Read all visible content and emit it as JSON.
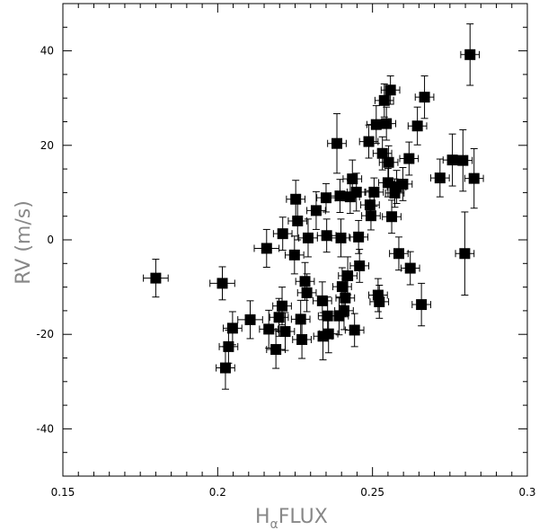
{
  "chart_data": {
    "type": "scatter",
    "title": "",
    "xlabel": {
      "main": "H",
      "subscript": "α",
      "suffix": "FLUX"
    },
    "ylabel": "RV  (m/s)",
    "xlim": [
      0.15,
      0.3
    ],
    "ylim": [
      -50,
      50
    ],
    "x_major_ticks": [
      0.15,
      0.2,
      0.25,
      0.3
    ],
    "x_tick_labels": [
      "0.15",
      "0.2",
      "0.25",
      "0.3"
    ],
    "y_major_ticks": [
      -40,
      -20,
      0,
      20,
      40
    ],
    "y_tick_labels": [
      "-40",
      "-20",
      "0",
      "20",
      "40"
    ],
    "grid": false,
    "points": [
      {
        "x": 0.18,
        "y": -8.1,
        "xerr": 0.004,
        "yerr": 4.0
      },
      {
        "x": 0.2015,
        "y": -9.2,
        "xerr": 0.004,
        "yerr": 3.5
      },
      {
        "x": 0.2025,
        "y": -27.1,
        "xerr": 0.003,
        "yerr": 4.5
      },
      {
        "x": 0.2035,
        "y": -22.6,
        "xerr": 0.003,
        "yerr": 3.5
      },
      {
        "x": 0.2048,
        "y": -18.7,
        "xerr": 0.003,
        "yerr": 3.5
      },
      {
        "x": 0.2105,
        "y": -16.9,
        "xerr": 0.004,
        "yerr": 4.0
      },
      {
        "x": 0.2158,
        "y": -1.8,
        "xerr": 0.004,
        "yerr": 4.0
      },
      {
        "x": 0.2165,
        "y": -18.9,
        "xerr": 0.003,
        "yerr": 4.0
      },
      {
        "x": 0.2188,
        "y": -23.2,
        "xerr": 0.003,
        "yerr": 4.0
      },
      {
        "x": 0.2198,
        "y": -16.4,
        "xerr": 0.003,
        "yerr": 4.0
      },
      {
        "x": 0.2208,
        "y": -14.0,
        "xerr": 0.003,
        "yerr": 4.0
      },
      {
        "x": 0.221,
        "y": 1.3,
        "xerr": 0.003,
        "yerr": 3.5
      },
      {
        "x": 0.2218,
        "y": -19.4,
        "xerr": 0.003,
        "yerr": 4.0
      },
      {
        "x": 0.2248,
        "y": -3.2,
        "xerr": 0.003,
        "yerr": 4.0
      },
      {
        "x": 0.2252,
        "y": 8.6,
        "xerr": 0.003,
        "yerr": 4.0
      },
      {
        "x": 0.2258,
        "y": 4.0,
        "xerr": 0.003,
        "yerr": 4.0
      },
      {
        "x": 0.2268,
        "y": -16.8,
        "xerr": 0.003,
        "yerr": 4.0
      },
      {
        "x": 0.2272,
        "y": -21.1,
        "xerr": 0.003,
        "yerr": 4.0
      },
      {
        "x": 0.2282,
        "y": -8.8,
        "xerr": 0.003,
        "yerr": 4.0
      },
      {
        "x": 0.2288,
        "y": -11.2,
        "xerr": 0.003,
        "yerr": 4.0
      },
      {
        "x": 0.2292,
        "y": 0.4,
        "xerr": 0.003,
        "yerr": 4.0
      },
      {
        "x": 0.2318,
        "y": 6.2,
        "xerr": 0.003,
        "yerr": 4.0
      },
      {
        "x": 0.2338,
        "y": -12.9,
        "xerr": 0.003,
        "yerr": 4.0
      },
      {
        "x": 0.234,
        "y": -20.4,
        "xerr": 0.003,
        "yerr": 5.0
      },
      {
        "x": 0.235,
        "y": 8.9,
        "xerr": 0.003,
        "yerr": 3.0
      },
      {
        "x": 0.2352,
        "y": 0.9,
        "xerr": 0.003,
        "yerr": 3.5
      },
      {
        "x": 0.2355,
        "y": -16.1,
        "xerr": 0.003,
        "yerr": 4.0
      },
      {
        "x": 0.2358,
        "y": -19.9,
        "xerr": 0.003,
        "yerr": 4.0
      },
      {
        "x": 0.2385,
        "y": 20.4,
        "xerr": 0.003,
        "yerr": 6.3
      },
      {
        "x": 0.2392,
        "y": -16.1,
        "xerr": 0.003,
        "yerr": 4.0
      },
      {
        "x": 0.2395,
        "y": 9.3,
        "xerr": 0.003,
        "yerr": 3.5
      },
      {
        "x": 0.2398,
        "y": 0.4,
        "xerr": 0.003,
        "yerr": 4.0
      },
      {
        "x": 0.2402,
        "y": -9.9,
        "xerr": 0.003,
        "yerr": 4.0
      },
      {
        "x": 0.2408,
        "y": -15.0,
        "xerr": 0.003,
        "yerr": 4.0
      },
      {
        "x": 0.2412,
        "y": -12.3,
        "xerr": 0.003,
        "yerr": 4.0
      },
      {
        "x": 0.242,
        "y": -7.6,
        "xerr": 0.003,
        "yerr": 4.0
      },
      {
        "x": 0.2428,
        "y": 9.1,
        "xerr": 0.003,
        "yerr": 3.5
      },
      {
        "x": 0.2435,
        "y": 12.9,
        "xerr": 0.003,
        "yerr": 4.0
      },
      {
        "x": 0.2442,
        "y": -19.1,
        "xerr": 0.003,
        "yerr": 3.5
      },
      {
        "x": 0.2448,
        "y": 10.1,
        "xerr": 0.003,
        "yerr": 4.0
      },
      {
        "x": 0.2455,
        "y": 0.6,
        "xerr": 0.003,
        "yerr": 3.5
      },
      {
        "x": 0.2458,
        "y": -5.5,
        "xerr": 0.003,
        "yerr": 3.5
      },
      {
        "x": 0.2488,
        "y": 20.8,
        "xerr": 0.003,
        "yerr": 3.5
      },
      {
        "x": 0.2492,
        "y": 7.4,
        "xerr": 0.003,
        "yerr": 3.0
      },
      {
        "x": 0.2495,
        "y": 5.1,
        "xerr": 0.003,
        "yerr": 3.0
      },
      {
        "x": 0.2505,
        "y": 10.1,
        "xerr": 0.003,
        "yerr": 3.0
      },
      {
        "x": 0.2512,
        "y": 24.4,
        "xerr": 0.003,
        "yerr": 4.0
      },
      {
        "x": 0.2518,
        "y": -11.7,
        "xerr": 0.003,
        "yerr": 3.5
      },
      {
        "x": 0.2522,
        "y": -13.1,
        "xerr": 0.003,
        "yerr": 3.5
      },
      {
        "x": 0.2532,
        "y": 18.3,
        "xerr": 0.003,
        "yerr": 3.5
      },
      {
        "x": 0.2538,
        "y": 29.5,
        "xerr": 0.003,
        "yerr": 3.5
      },
      {
        "x": 0.2545,
        "y": 24.6,
        "xerr": 0.003,
        "yerr": 3.5
      },
      {
        "x": 0.255,
        "y": 12.1,
        "xerr": 0.003,
        "yerr": 3.0
      },
      {
        "x": 0.2552,
        "y": 16.4,
        "xerr": 0.003,
        "yerr": 3.5
      },
      {
        "x": 0.2558,
        "y": 31.7,
        "xerr": 0.003,
        "yerr": 3.0
      },
      {
        "x": 0.2562,
        "y": 4.9,
        "xerr": 0.003,
        "yerr": 3.5
      },
      {
        "x": 0.2572,
        "y": 9.9,
        "xerr": 0.003,
        "yerr": 3.0
      },
      {
        "x": 0.2578,
        "y": 11.2,
        "xerr": 0.003,
        "yerr": 3.5
      },
      {
        "x": 0.2585,
        "y": -2.9,
        "xerr": 0.003,
        "yerr": 3.5
      },
      {
        "x": 0.2598,
        "y": 11.8,
        "xerr": 0.003,
        "yerr": 3.5
      },
      {
        "x": 0.2618,
        "y": 17.2,
        "xerr": 0.003,
        "yerr": 3.5
      },
      {
        "x": 0.2622,
        "y": -6.0,
        "xerr": 0.003,
        "yerr": 3.5
      },
      {
        "x": 0.2645,
        "y": 24.1,
        "xerr": 0.003,
        "yerr": 4.0
      },
      {
        "x": 0.2658,
        "y": -13.7,
        "xerr": 0.003,
        "yerr": 4.5
      },
      {
        "x": 0.2668,
        "y": 30.2,
        "xerr": 0.003,
        "yerr": 4.5
      },
      {
        "x": 0.2718,
        "y": 13.1,
        "xerr": 0.003,
        "yerr": 4.0
      },
      {
        "x": 0.2758,
        "y": 16.9,
        "xerr": 0.003,
        "yerr": 5.5
      },
      {
        "x": 0.2792,
        "y": 16.8,
        "xerr": 0.003,
        "yerr": 6.5
      },
      {
        "x": 0.2798,
        "y": -2.9,
        "xerr": 0.003,
        "yerr": 8.8
      },
      {
        "x": 0.2815,
        "y": 39.2,
        "xerr": 0.003,
        "yerr": 6.5
      },
      {
        "x": 0.2828,
        "y": 13.0,
        "xerr": 0.003,
        "yerr": 6.3
      }
    ]
  }
}
